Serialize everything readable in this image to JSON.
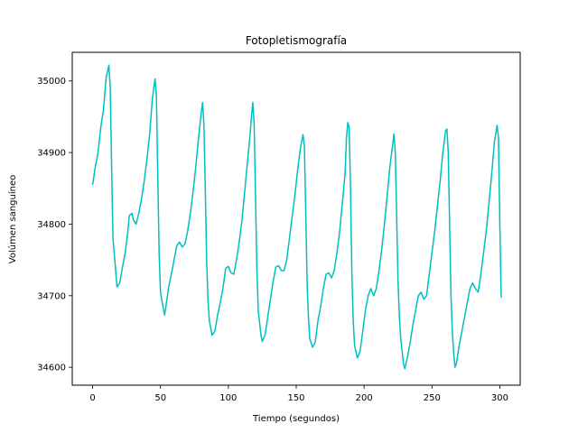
{
  "chart_data": {
    "type": "line",
    "title": "Fotopletismografía",
    "xlabel": "Tiempo (segundos)",
    "ylabel": "Volúmen sanguíneo",
    "xlim": [
      -15,
      315
    ],
    "ylim": [
      34575,
      35040
    ],
    "x_ticks": [
      0,
      50,
      100,
      150,
      200,
      250,
      300
    ],
    "y_ticks": [
      34600,
      34700,
      34800,
      34900,
      35000
    ],
    "grid": false,
    "legend": "none",
    "series": [
      {
        "color": "#00bfbf",
        "points": [
          [
            0,
            34855
          ],
          [
            2,
            34880
          ],
          [
            4,
            34900
          ],
          [
            6,
            34935
          ],
          [
            8,
            34960
          ],
          [
            10,
            35005
          ],
          [
            12,
            35022
          ],
          [
            13,
            34990
          ],
          [
            14,
            34880
          ],
          [
            15,
            34780
          ],
          [
            17,
            34735
          ],
          [
            18,
            34712
          ],
          [
            20,
            34718
          ],
          [
            22,
            34740
          ],
          [
            24,
            34760
          ],
          [
            26,
            34790
          ],
          [
            27,
            34812
          ],
          [
            29,
            34815
          ],
          [
            30,
            34806
          ],
          [
            32,
            34800
          ],
          [
            34,
            34815
          ],
          [
            36,
            34835
          ],
          [
            38,
            34860
          ],
          [
            40,
            34890
          ],
          [
            42,
            34925
          ],
          [
            44,
            34975
          ],
          [
            46,
            35003
          ],
          [
            47,
            34980
          ],
          [
            48,
            34870
          ],
          [
            49,
            34760
          ],
          [
            50,
            34705
          ],
          [
            52,
            34683
          ],
          [
            53,
            34673
          ],
          [
            54,
            34685
          ],
          [
            56,
            34712
          ],
          [
            58,
            34730
          ],
          [
            60,
            34750
          ],
          [
            62,
            34770
          ],
          [
            64,
            34775
          ],
          [
            66,
            34768
          ],
          [
            68,
            34772
          ],
          [
            70,
            34790
          ],
          [
            72,
            34815
          ],
          [
            74,
            34845
          ],
          [
            76,
            34880
          ],
          [
            78,
            34920
          ],
          [
            80,
            34955
          ],
          [
            81,
            34970
          ],
          [
            82,
            34940
          ],
          [
            83,
            34850
          ],
          [
            84,
            34750
          ],
          [
            85,
            34695
          ],
          [
            86,
            34665
          ],
          [
            88,
            34645
          ],
          [
            90,
            34650
          ],
          [
            92,
            34672
          ],
          [
            94,
            34690
          ],
          [
            96,
            34710
          ],
          [
            98,
            34738
          ],
          [
            100,
            34741
          ],
          [
            102,
            34732
          ],
          [
            104,
            34730
          ],
          [
            106,
            34750
          ],
          [
            108,
            34775
          ],
          [
            110,
            34805
          ],
          [
            112,
            34845
          ],
          [
            114,
            34885
          ],
          [
            116,
            34925
          ],
          [
            117,
            34950
          ],
          [
            118,
            34970
          ],
          [
            119,
            34940
          ],
          [
            120,
            34840
          ],
          [
            121,
            34740
          ],
          [
            122,
            34680
          ],
          [
            124,
            34645
          ],
          [
            125,
            34636
          ],
          [
            127,
            34645
          ],
          [
            129,
            34670
          ],
          [
            131,
            34695
          ],
          [
            133,
            34720
          ],
          [
            135,
            34740
          ],
          [
            137,
            34742
          ],
          [
            139,
            34735
          ],
          [
            141,
            34735
          ],
          [
            143,
            34750
          ],
          [
            145,
            34780
          ],
          [
            147,
            34810
          ],
          [
            149,
            34840
          ],
          [
            151,
            34875
          ],
          [
            153,
            34905
          ],
          [
            155,
            34925
          ],
          [
            156,
            34910
          ],
          [
            157,
            34820
          ],
          [
            158,
            34720
          ],
          [
            159,
            34670
          ],
          [
            160,
            34640
          ],
          [
            162,
            34628
          ],
          [
            164,
            34635
          ],
          [
            166,
            34665
          ],
          [
            168,
            34685
          ],
          [
            170,
            34710
          ],
          [
            172,
            34730
          ],
          [
            174,
            34732
          ],
          [
            176,
            34725
          ],
          [
            178,
            34735
          ],
          [
            180,
            34760
          ],
          [
            182,
            34790
          ],
          [
            184,
            34830
          ],
          [
            186,
            34870
          ],
          [
            187,
            34920
          ],
          [
            188,
            34942
          ],
          [
            189,
            34935
          ],
          [
            190,
            34850
          ],
          [
            191,
            34730
          ],
          [
            192,
            34665
          ],
          [
            193,
            34630
          ],
          [
            195,
            34613
          ],
          [
            197,
            34622
          ],
          [
            199,
            34650
          ],
          [
            201,
            34680
          ],
          [
            203,
            34700
          ],
          [
            205,
            34710
          ],
          [
            207,
            34700
          ],
          [
            209,
            34710
          ],
          [
            211,
            34735
          ],
          [
            213,
            34765
          ],
          [
            215,
            34800
          ],
          [
            217,
            34840
          ],
          [
            219,
            34880
          ],
          [
            221,
            34910
          ],
          [
            222,
            34926
          ],
          [
            223,
            34900
          ],
          [
            224,
            34810
          ],
          [
            225,
            34720
          ],
          [
            226,
            34670
          ],
          [
            227,
            34640
          ],
          [
            229,
            34605
          ],
          [
            230,
            34598
          ],
          [
            232,
            34615
          ],
          [
            234,
            34635
          ],
          [
            236,
            34660
          ],
          [
            238,
            34680
          ],
          [
            240,
            34700
          ],
          [
            242,
            34705
          ],
          [
            244,
            34695
          ],
          [
            246,
            34700
          ],
          [
            248,
            34730
          ],
          [
            250,
            34760
          ],
          [
            252,
            34790
          ],
          [
            254,
            34825
          ],
          [
            256,
            34860
          ],
          [
            258,
            34900
          ],
          [
            260,
            34930
          ],
          [
            261,
            34933
          ],
          [
            262,
            34900
          ],
          [
            263,
            34800
          ],
          [
            264,
            34700
          ],
          [
            265,
            34650
          ],
          [
            266,
            34620
          ],
          [
            267,
            34600
          ],
          [
            268,
            34605
          ],
          [
            270,
            34630
          ],
          [
            272,
            34650
          ],
          [
            274,
            34670
          ],
          [
            276,
            34690
          ],
          [
            278,
            34710
          ],
          [
            280,
            34718
          ],
          [
            282,
            34710
          ],
          [
            284,
            34705
          ],
          [
            286,
            34730
          ],
          [
            288,
            34760
          ],
          [
            290,
            34790
          ],
          [
            292,
            34830
          ],
          [
            294,
            34870
          ],
          [
            296,
            34915
          ],
          [
            298,
            34938
          ],
          [
            299,
            34920
          ],
          [
            300,
            34800
          ],
          [
            301,
            34697
          ]
        ]
      }
    ]
  }
}
